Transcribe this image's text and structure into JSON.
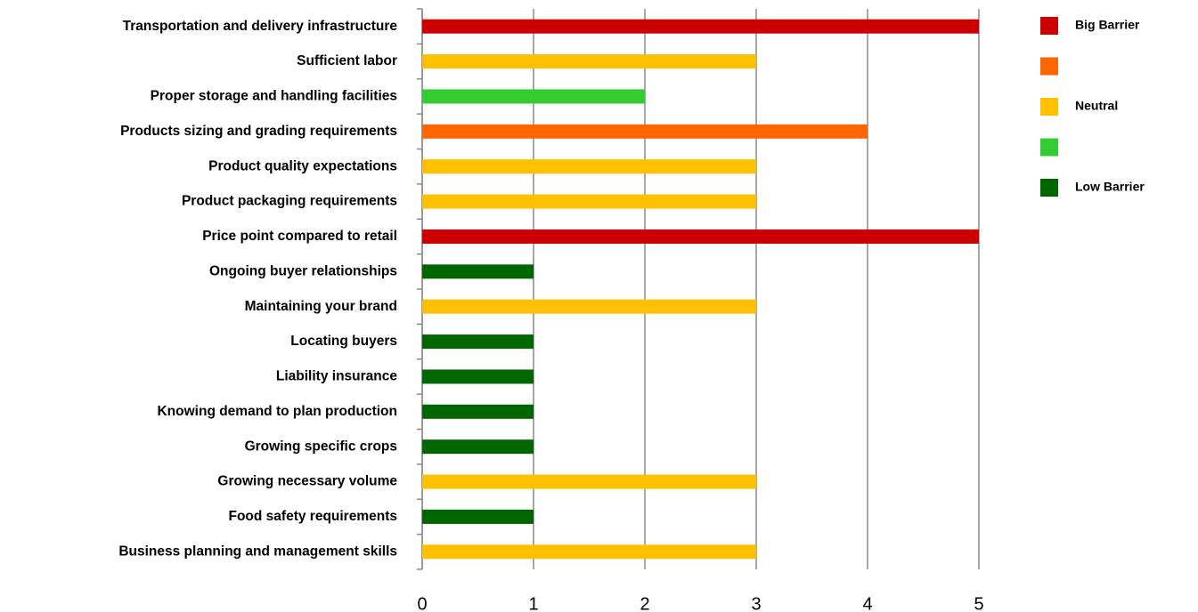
{
  "chart_data": {
    "type": "bar",
    "orientation": "horizontal",
    "categories": [
      "Transportation and delivery infrastructure",
      "Sufficient labor",
      "Proper storage and handling facilities",
      "Products sizing and grading requirements",
      "Product quality expectations",
      "Product packaging requirements",
      "Price point compared to retail",
      "Ongoing buyer relationships",
      "Maintaining your brand",
      "Locating buyers",
      "Liability insurance",
      "Knowing demand to plan production",
      "Growing specific crops",
      "Growing necessary volume",
      "Food safety requirements",
      "Business planning and management  skills"
    ],
    "values": [
      5,
      3,
      2,
      4,
      3,
      3,
      5,
      1,
      3,
      1,
      1,
      1,
      1,
      3,
      1,
      3
    ],
    "colors": [
      "#cc0000",
      "#ffc000",
      "#33cc33",
      "#ff6600",
      "#ffc000",
      "#ffc000",
      "#cc0000",
      "#006600",
      "#ffc000",
      "#006600",
      "#006600",
      "#006600",
      "#006600",
      "#ffc000",
      "#006600",
      "#ffc000"
    ],
    "xlim": [
      0,
      5
    ],
    "xticks": [
      0,
      1,
      2,
      3,
      4,
      5
    ],
    "grid": true,
    "legend": [
      {
        "label": "Big Barrier",
        "color": "#cc0000"
      },
      {
        "label": null,
        "color": "#ff6600"
      },
      {
        "label": "Neutral",
        "color": "#ffc000"
      },
      {
        "label": null,
        "color": "#33cc33"
      },
      {
        "label": "Low Barrier",
        "color": "#006600"
      }
    ],
    "legend_position": "upper right"
  }
}
